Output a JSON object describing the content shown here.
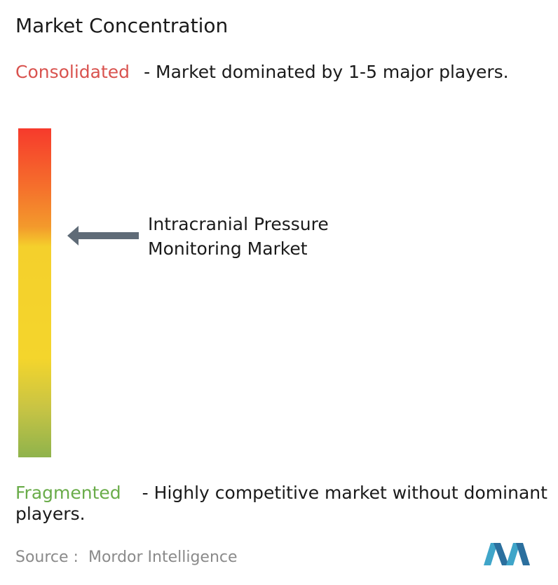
{
  "title": "Market Concentration",
  "consolidated": {
    "label": "Consolidated",
    "description": "- Market dominated by 1-5 major players."
  },
  "fragmented": {
    "label": "Fragmented",
    "description": "- Highly competitive market without dominant players."
  },
  "market": {
    "label": "Intracranial Pressure Monitoring Market"
  },
  "source": {
    "label": "Source :",
    "name": "Mordor Intelligence"
  }
}
